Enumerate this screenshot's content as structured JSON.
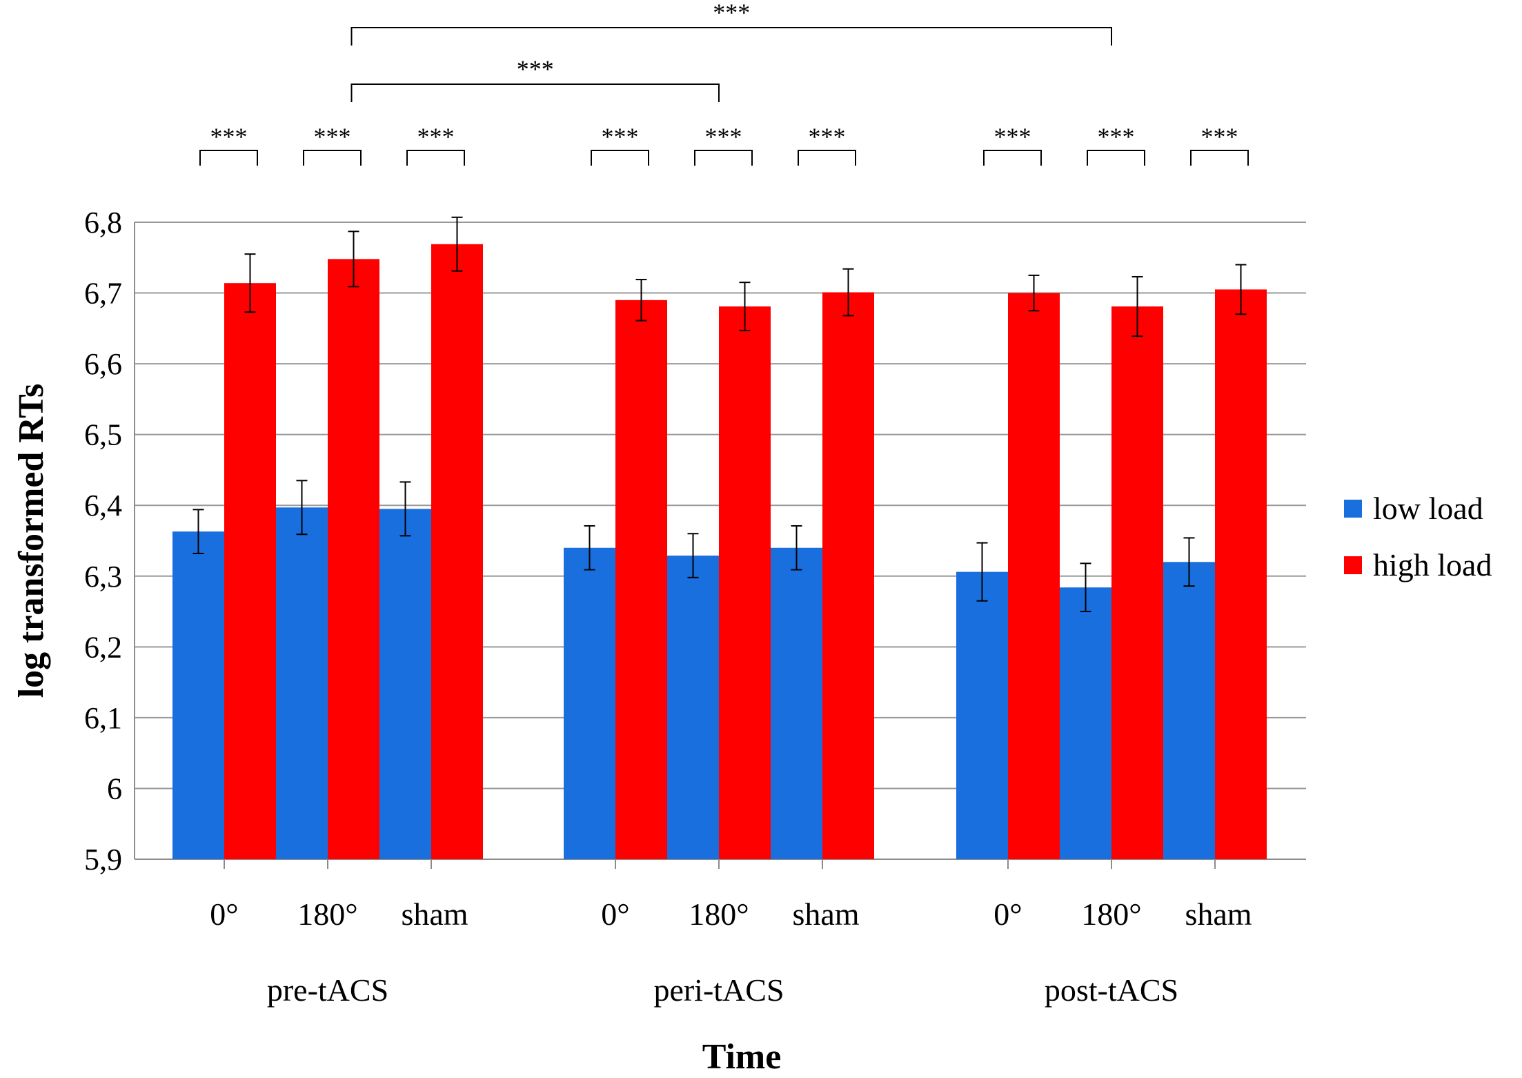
{
  "chart_data": {
    "type": "bar",
    "title": "",
    "xlabel": "Time",
    "ylabel": "log transformed RTs",
    "ylim": [
      5.9,
      6.8
    ],
    "yticks": [
      5.9,
      6.0,
      6.1,
      6.2,
      6.3,
      6.4,
      6.5,
      6.6,
      6.7,
      6.8
    ],
    "ytick_labels": [
      "5,9",
      "6",
      "6,1",
      "6,2",
      "6,3",
      "6,4",
      "6,5",
      "6,6",
      "6,7",
      "6,8"
    ],
    "grid": true,
    "legend_position": "right",
    "groups": [
      "pre-tACS",
      "peri-tACS",
      "post-tACS"
    ],
    "conditions": [
      "0°",
      "180°",
      "sham"
    ],
    "series": [
      {
        "name": "low load",
        "color": "#1a6fde",
        "values": [
          6.363,
          6.397,
          6.395,
          6.34,
          6.329,
          6.34,
          6.306,
          6.284,
          6.32
        ],
        "errors": [
          0.031,
          0.038,
          0.038,
          0.031,
          0.031,
          0.031,
          0.041,
          0.034,
          0.034
        ]
      },
      {
        "name": "high load",
        "color": "#ff0000",
        "values": [
          6.714,
          6.748,
          6.769,
          6.69,
          6.681,
          6.701,
          6.7,
          6.681,
          6.705
        ],
        "errors": [
          0.041,
          0.039,
          0.038,
          0.029,
          0.034,
          0.033,
          0.025,
          0.042,
          0.035
        ]
      }
    ],
    "significance": {
      "label": "***",
      "pairwise": [
        0,
        1,
        2,
        3,
        4,
        5,
        6,
        7,
        8
      ],
      "across": [
        {
          "from_group": 0,
          "from_condition": 1,
          "to_group": 1,
          "to_condition": 1
        },
        {
          "from_group": 0,
          "from_condition": 1,
          "to_group": 2,
          "to_condition": 1
        }
      ]
    }
  }
}
